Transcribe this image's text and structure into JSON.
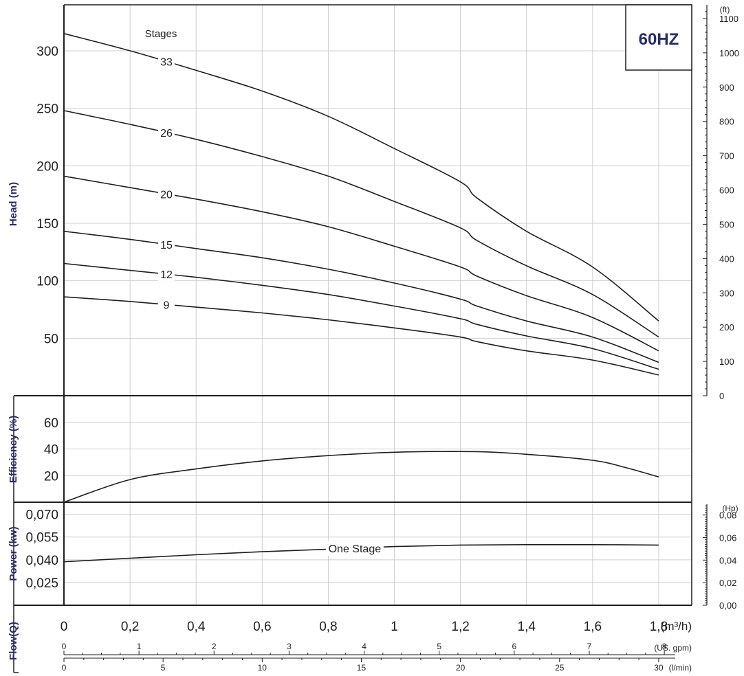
{
  "badge": "60HZ",
  "chart_data": [
    {
      "type": "line",
      "panel": "head",
      "ylabel": "Head (m)",
      "ylabel_right": "(ft)",
      "legend_title": "Stages",
      "x": [
        0,
        0.2,
        0.4,
        0.6,
        0.8,
        1.0,
        1.2,
        1.25,
        1.4,
        1.6,
        1.8
      ],
      "xlim": [
        0,
        1.9
      ],
      "ylim": [
        0,
        340
      ],
      "yticks": [
        50,
        100,
        150,
        200,
        250,
        300
      ],
      "yticks_right": [
        0,
        100,
        200,
        300,
        400,
        500,
        600,
        700,
        800,
        900,
        1000,
        1100
      ],
      "grid": true,
      "series": [
        {
          "name": "33",
          "values": [
            315,
            300,
            283,
            265,
            243,
            215,
            186,
            172,
            143,
            112,
            65
          ],
          "label_at": 0.31
        },
        {
          "name": "26",
          "values": [
            248,
            236,
            223,
            208,
            191,
            169,
            146,
            135,
            113,
            88,
            51
          ],
          "label_at": 0.31
        },
        {
          "name": "20",
          "values": [
            191,
            181,
            171,
            160,
            147,
            130,
            112,
            104,
            87,
            68,
            39
          ],
          "label_at": 0.31
        },
        {
          "name": "15",
          "values": [
            143,
            136,
            128,
            120,
            110,
            98,
            84,
            78,
            65,
            51,
            29
          ],
          "label_at": 0.31
        },
        {
          "name": "12",
          "values": [
            115,
            109,
            103,
            96,
            88,
            78,
            67,
            62,
            52,
            41,
            23
          ],
          "label_at": 0.31
        },
        {
          "name": "9",
          "values": [
            86,
            82,
            77,
            72,
            66,
            59,
            51,
            47,
            39,
            31,
            18
          ],
          "label_at": 0.31
        }
      ]
    },
    {
      "type": "line",
      "panel": "efficiency",
      "ylabel": "Efficiency (%)",
      "x": [
        0,
        0.2,
        0.4,
        0.6,
        0.8,
        1.0,
        1.25,
        1.4,
        1.6,
        1.7,
        1.8
      ],
      "ylim": [
        0,
        80
      ],
      "yticks": [
        20,
        40,
        60
      ],
      "grid": true,
      "series": [
        {
          "values": [
            0,
            17,
            25,
            31,
            35,
            37.5,
            38,
            36,
            31.5,
            26,
            19
          ]
        }
      ]
    },
    {
      "type": "line",
      "panel": "power",
      "ylabel": "Power (kw)",
      "ylabel_right": "(Hp)",
      "x": [
        0,
        0.2,
        0.4,
        0.6,
        0.8,
        1.0,
        1.2,
        1.4,
        1.6,
        1.8
      ],
      "ylim": [
        0.01,
        0.078
      ],
      "yticks": [
        "0,025",
        "0,040",
        "0,055",
        "0,070"
      ],
      "ytick_values": [
        0.025,
        0.04,
        0.055,
        0.07
      ],
      "yticks_right": [
        "0,00",
        "0,02",
        "0,04",
        "0,06",
        "0,08"
      ],
      "ytick_right_values": [
        0,
        0.02,
        0.04,
        0.06,
        0.08
      ],
      "grid": true,
      "series": [
        {
          "name": "One Stage",
          "values": [
            0.0387,
            0.041,
            0.0433,
            0.0453,
            0.047,
            0.0487,
            0.0497,
            0.05,
            0.05,
            0.0497
          ],
          "label_at": 0.88
        }
      ]
    }
  ],
  "flow": {
    "label": "Flow(Q)",
    "m3h": {
      "unit": "(m³/h)",
      "ticks": [
        "0",
        "0,2",
        "0,4",
        "0,6",
        "0,8",
        "1",
        "1,2",
        "1,4",
        "1,6",
        "1,8"
      ]
    },
    "gpm": {
      "unit": "(US. gpm)",
      "ticks": [
        "0",
        "1",
        "2",
        "3",
        "4",
        "5",
        "6",
        "7",
        "8"
      ]
    },
    "lmin": {
      "unit": "(l/min)",
      "ticks": [
        "0",
        "5",
        "10",
        "15",
        "20",
        "25",
        "30"
      ]
    }
  },
  "colors": {
    "line": "#1e1e1e",
    "grid": "#cfcfcf",
    "label": "#2a2a6e"
  }
}
